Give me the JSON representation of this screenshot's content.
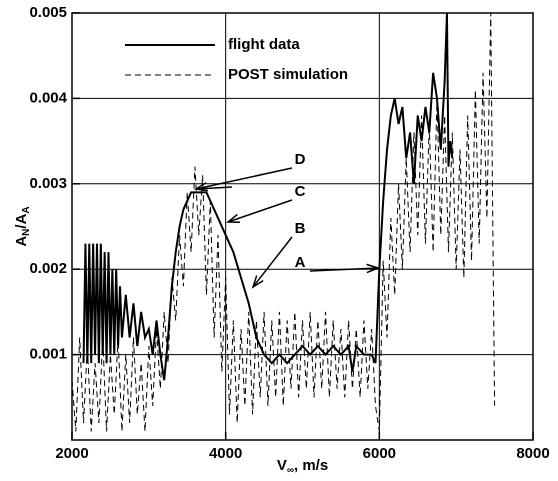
{
  "chart_data": {
    "type": "line",
    "xlabel": [
      "V",
      "∞",
      ", m/s"
    ],
    "ylabel": [
      "A",
      "N",
      "/A",
      "A"
    ],
    "xlim": [
      2000,
      8000
    ],
    "xticks": [
      2000,
      4000,
      6000,
      8000
    ],
    "ylim": [
      0,
      0.005
    ],
    "yticks": [
      0.001,
      0.002,
      0.003,
      0.004,
      0.005
    ],
    "grid": true,
    "legend": "upper left",
    "annotations": [
      "A",
      "B",
      "C",
      "D"
    ],
    "series": [
      {
        "name": "flight data",
        "color": "#000000",
        "style": "solid",
        "x": [
          2150,
          2175,
          2200,
          2225,
          2250,
          2275,
          2300,
          2325,
          2350,
          2375,
          2400,
          2425,
          2450,
          2475,
          2500,
          2525,
          2550,
          2575,
          2600,
          2625,
          2650,
          2700,
          2750,
          2800,
          2850,
          2900,
          2950,
          3000,
          3050,
          3100,
          3150,
          3200,
          3250,
          3300,
          3350,
          3400,
          3450,
          3500,
          3550,
          3600,
          3650,
          3700,
          3750,
          3800,
          3850,
          3900,
          3950,
          4000,
          4100,
          4200,
          4300,
          4400,
          4500,
          4600,
          4700,
          4800,
          4900,
          5000,
          5100,
          5200,
          5300,
          5400,
          5500,
          5600,
          5650,
          5700,
          5800,
          5900,
          5950,
          6000,
          6050,
          6100,
          6150,
          6200,
          6250,
          6300,
          6350,
          6400,
          6450,
          6500,
          6550,
          6600,
          6650,
          6700,
          6750,
          6800,
          6850,
          6880,
          6900,
          6920,
          6950
        ],
        "values": [
          0.0009,
          0.0023,
          0.0009,
          0.0023,
          0.0009,
          0.0023,
          0.001,
          0.0023,
          0.0009,
          0.0023,
          0.001,
          0.0022,
          0.0009,
          0.0022,
          0.001,
          0.002,
          0.001,
          0.002,
          0.0011,
          0.0018,
          0.0012,
          0.0017,
          0.0012,
          0.0016,
          0.0011,
          0.0015,
          0.0012,
          0.0013,
          0.001,
          0.0014,
          0.001,
          0.0007,
          0.0012,
          0.0018,
          0.0022,
          0.0025,
          0.0027,
          0.0028,
          0.0029,
          0.0029,
          0.0029,
          0.0029,
          0.0029,
          0.0028,
          0.0027,
          0.0026,
          0.0025,
          0.0024,
          0.0022,
          0.0019,
          0.0016,
          0.0012,
          0.001,
          0.0009,
          0.001,
          0.0009,
          0.001,
          0.0011,
          0.001,
          0.0011,
          0.001,
          0.0011,
          0.001,
          0.0011,
          0.0008,
          0.0011,
          0.001,
          0.001,
          0.0009,
          0.002,
          0.0028,
          0.0034,
          0.0038,
          0.004,
          0.0037,
          0.0039,
          0.0033,
          0.0036,
          0.003,
          0.0038,
          0.0035,
          0.0039,
          0.0036,
          0.0043,
          0.004,
          0.0034,
          0.0042,
          0.005,
          0.0032,
          0.0035,
          0.0033
        ]
      },
      {
        "name": "POST simulation",
        "color": "#000000",
        "style": "dashed",
        "x": [
          2000,
          2050,
          2100,
          2150,
          2200,
          2250,
          2300,
          2350,
          2400,
          2450,
          2500,
          2550,
          2600,
          2650,
          2700,
          2750,
          2800,
          2850,
          2900,
          2950,
          3000,
          3050,
          3100,
          3150,
          3200,
          3250,
          3300,
          3350,
          3400,
          3450,
          3500,
          3550,
          3600,
          3650,
          3700,
          3750,
          3800,
          3850,
          3900,
          3950,
          4000,
          4050,
          4100,
          4150,
          4200,
          4250,
          4300,
          4350,
          4400,
          4450,
          4500,
          4550,
          4600,
          4650,
          4700,
          4750,
          4800,
          4850,
          4900,
          4950,
          5000,
          5050,
          5100,
          5150,
          5200,
          5250,
          5300,
          5350,
          5400,
          5450,
          5500,
          5550,
          5600,
          5650,
          5700,
          5750,
          5800,
          5850,
          5900,
          5950,
          6000,
          6050,
          6100,
          6150,
          6200,
          6250,
          6300,
          6350,
          6400,
          6450,
          6500,
          6550,
          6600,
          6650,
          6700,
          6750,
          6800,
          6850,
          6900,
          6950,
          7000,
          7050,
          7100,
          7150,
          7200,
          7250,
          7300,
          7350,
          7400,
          7450,
          7500
        ],
        "values": [
          0.0007,
          0.0001,
          0.0012,
          0.0002,
          0.0011,
          0.0001,
          0.0009,
          0.0002,
          0.0012,
          0.0001,
          0.001,
          0.0003,
          0.0012,
          0.0001,
          0.001,
          0.0002,
          0.0012,
          0.0003,
          0.0009,
          0.0001,
          0.0011,
          0.0004,
          0.0013,
          0.0006,
          0.0015,
          0.0009,
          0.0019,
          0.0014,
          0.0024,
          0.0018,
          0.0029,
          0.0022,
          0.0032,
          0.0024,
          0.0031,
          0.0017,
          0.0028,
          0.0012,
          0.0024,
          0.0008,
          0.0019,
          0.0003,
          0.0014,
          0.0002,
          0.0013,
          0.0004,
          0.0015,
          0.0003,
          0.0014,
          0.0005,
          0.0015,
          0.0004,
          0.0014,
          0.0005,
          0.0015,
          0.0004,
          0.0014,
          0.0006,
          0.0015,
          0.0005,
          0.0014,
          0.0006,
          0.0015,
          0.0005,
          0.0014,
          0.0006,
          0.0015,
          0.0005,
          0.0014,
          0.0006,
          0.0013,
          0.0005,
          0.0014,
          0.0006,
          0.0013,
          0.0005,
          0.0014,
          0.0006,
          0.0013,
          0.0004,
          0.0001,
          0.0021,
          0.0012,
          0.0026,
          0.0017,
          0.003,
          0.002,
          0.0033,
          0.0022,
          0.0036,
          0.0024,
          0.0038,
          0.0023,
          0.0037,
          0.0022,
          0.004,
          0.0024,
          0.0038,
          0.0022,
          0.0036,
          0.002,
          0.0034,
          0.0019,
          0.0038,
          0.0021,
          0.0041,
          0.0023,
          0.0043,
          0.0026,
          0.005,
          0.0004
        ]
      }
    ]
  }
}
